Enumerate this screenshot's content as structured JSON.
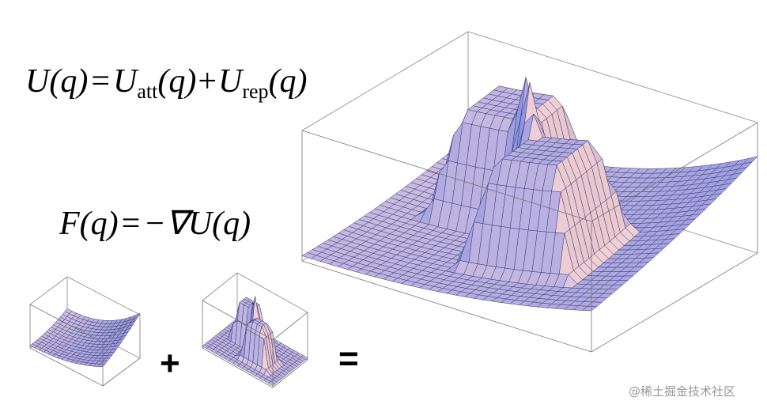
{
  "equations": [
    {
      "lhs": "U(q)",
      "eq": "=",
      "t1": "U",
      "t1sub": "att",
      "t1arg": "(q)",
      "plus": "+",
      "t2": "U",
      "t2sub": "rep",
      "t2arg": "(q)"
    },
    {
      "lhs": "F(q)",
      "eq": "=",
      "rhs": "−∇U(q)"
    }
  ],
  "operators": {
    "plus": "+",
    "equals": "="
  },
  "watermark": "@稀土掘金技术社区"
}
